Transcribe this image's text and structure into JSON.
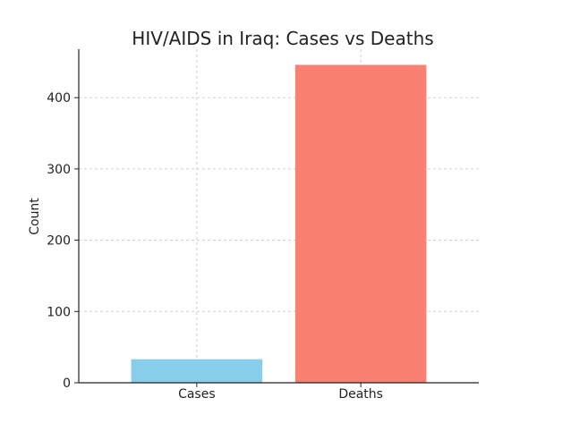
{
  "chart_data": {
    "type": "bar",
    "title": "HIV/AIDS in Iraq: Cases vs Deaths",
    "xlabel": "",
    "ylabel": "Count",
    "categories": [
      "Cases",
      "Deaths"
    ],
    "values": [
      33,
      446
    ],
    "colors": [
      "#87ceeb",
      "#fa8072"
    ],
    "yticks": [
      0,
      100,
      200,
      300,
      400
    ],
    "ylim": [
      0,
      468
    ],
    "grid": true,
    "legend": null
  }
}
